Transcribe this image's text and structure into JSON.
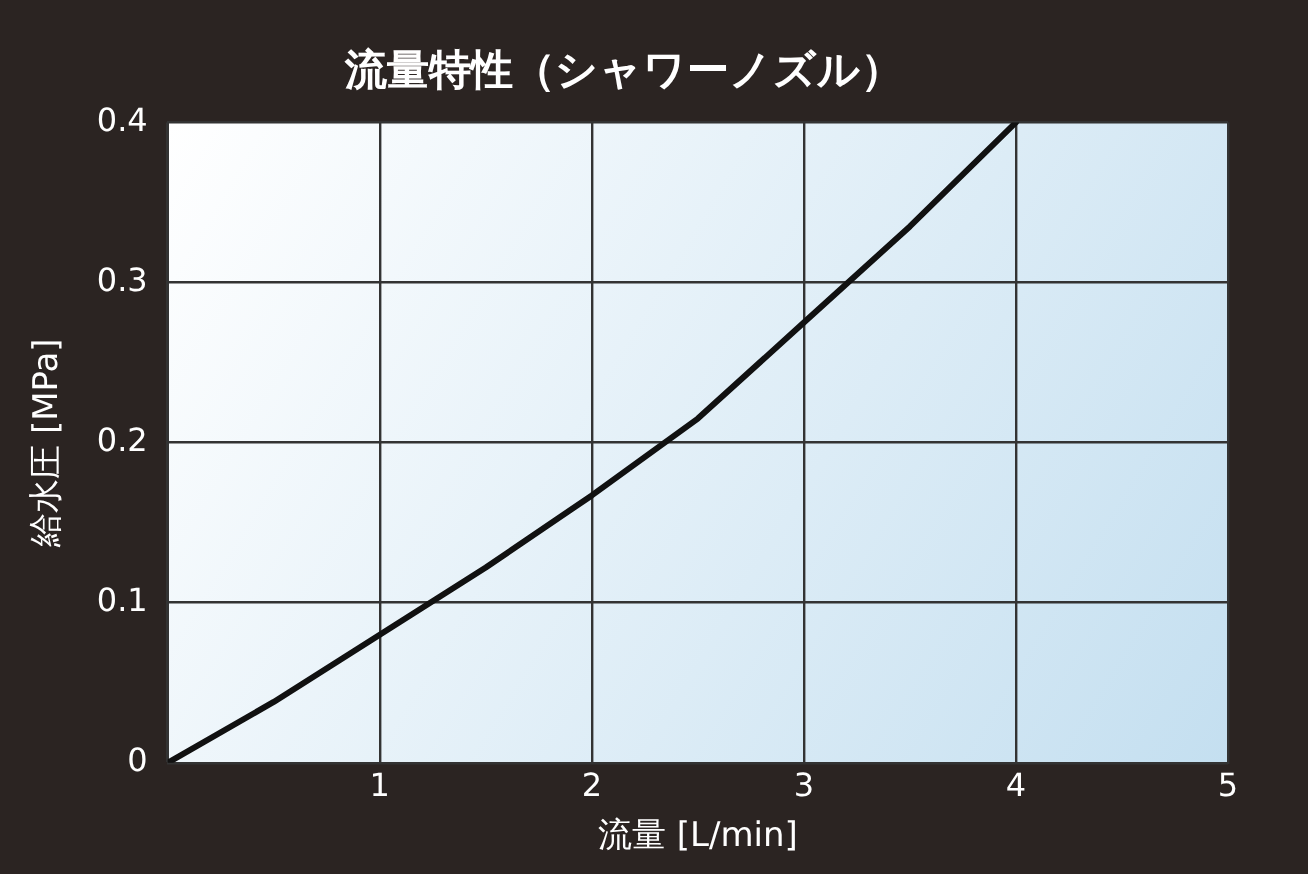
{
  "chart_data": {
    "type": "line",
    "title": "流量特性（シャワーノズル）",
    "xlabel": "流量 [L/min]",
    "ylabel": "給水圧 [MPa]",
    "x": [
      0,
      0.5,
      1,
      1.5,
      2,
      2.5,
      3,
      3.5,
      4
    ],
    "series": [
      {
        "color": "#111111",
        "values": [
          0,
          0.038,
          0.08,
          0.122,
          0.167,
          0.215,
          0.275,
          0.335,
          0.4
        ]
      }
    ],
    "xlim": [
      0,
      5
    ],
    "xticks": [
      {
        "value": 0,
        "label": null
      },
      1,
      2,
      3,
      4,
      5
    ],
    "ylim": [
      0,
      0.4
    ],
    "yticks": [
      0,
      0.1,
      0.2,
      0.3,
      0.4
    ],
    "grid": true,
    "legend": false,
    "marker": "none",
    "line_style": "solid"
  }
}
